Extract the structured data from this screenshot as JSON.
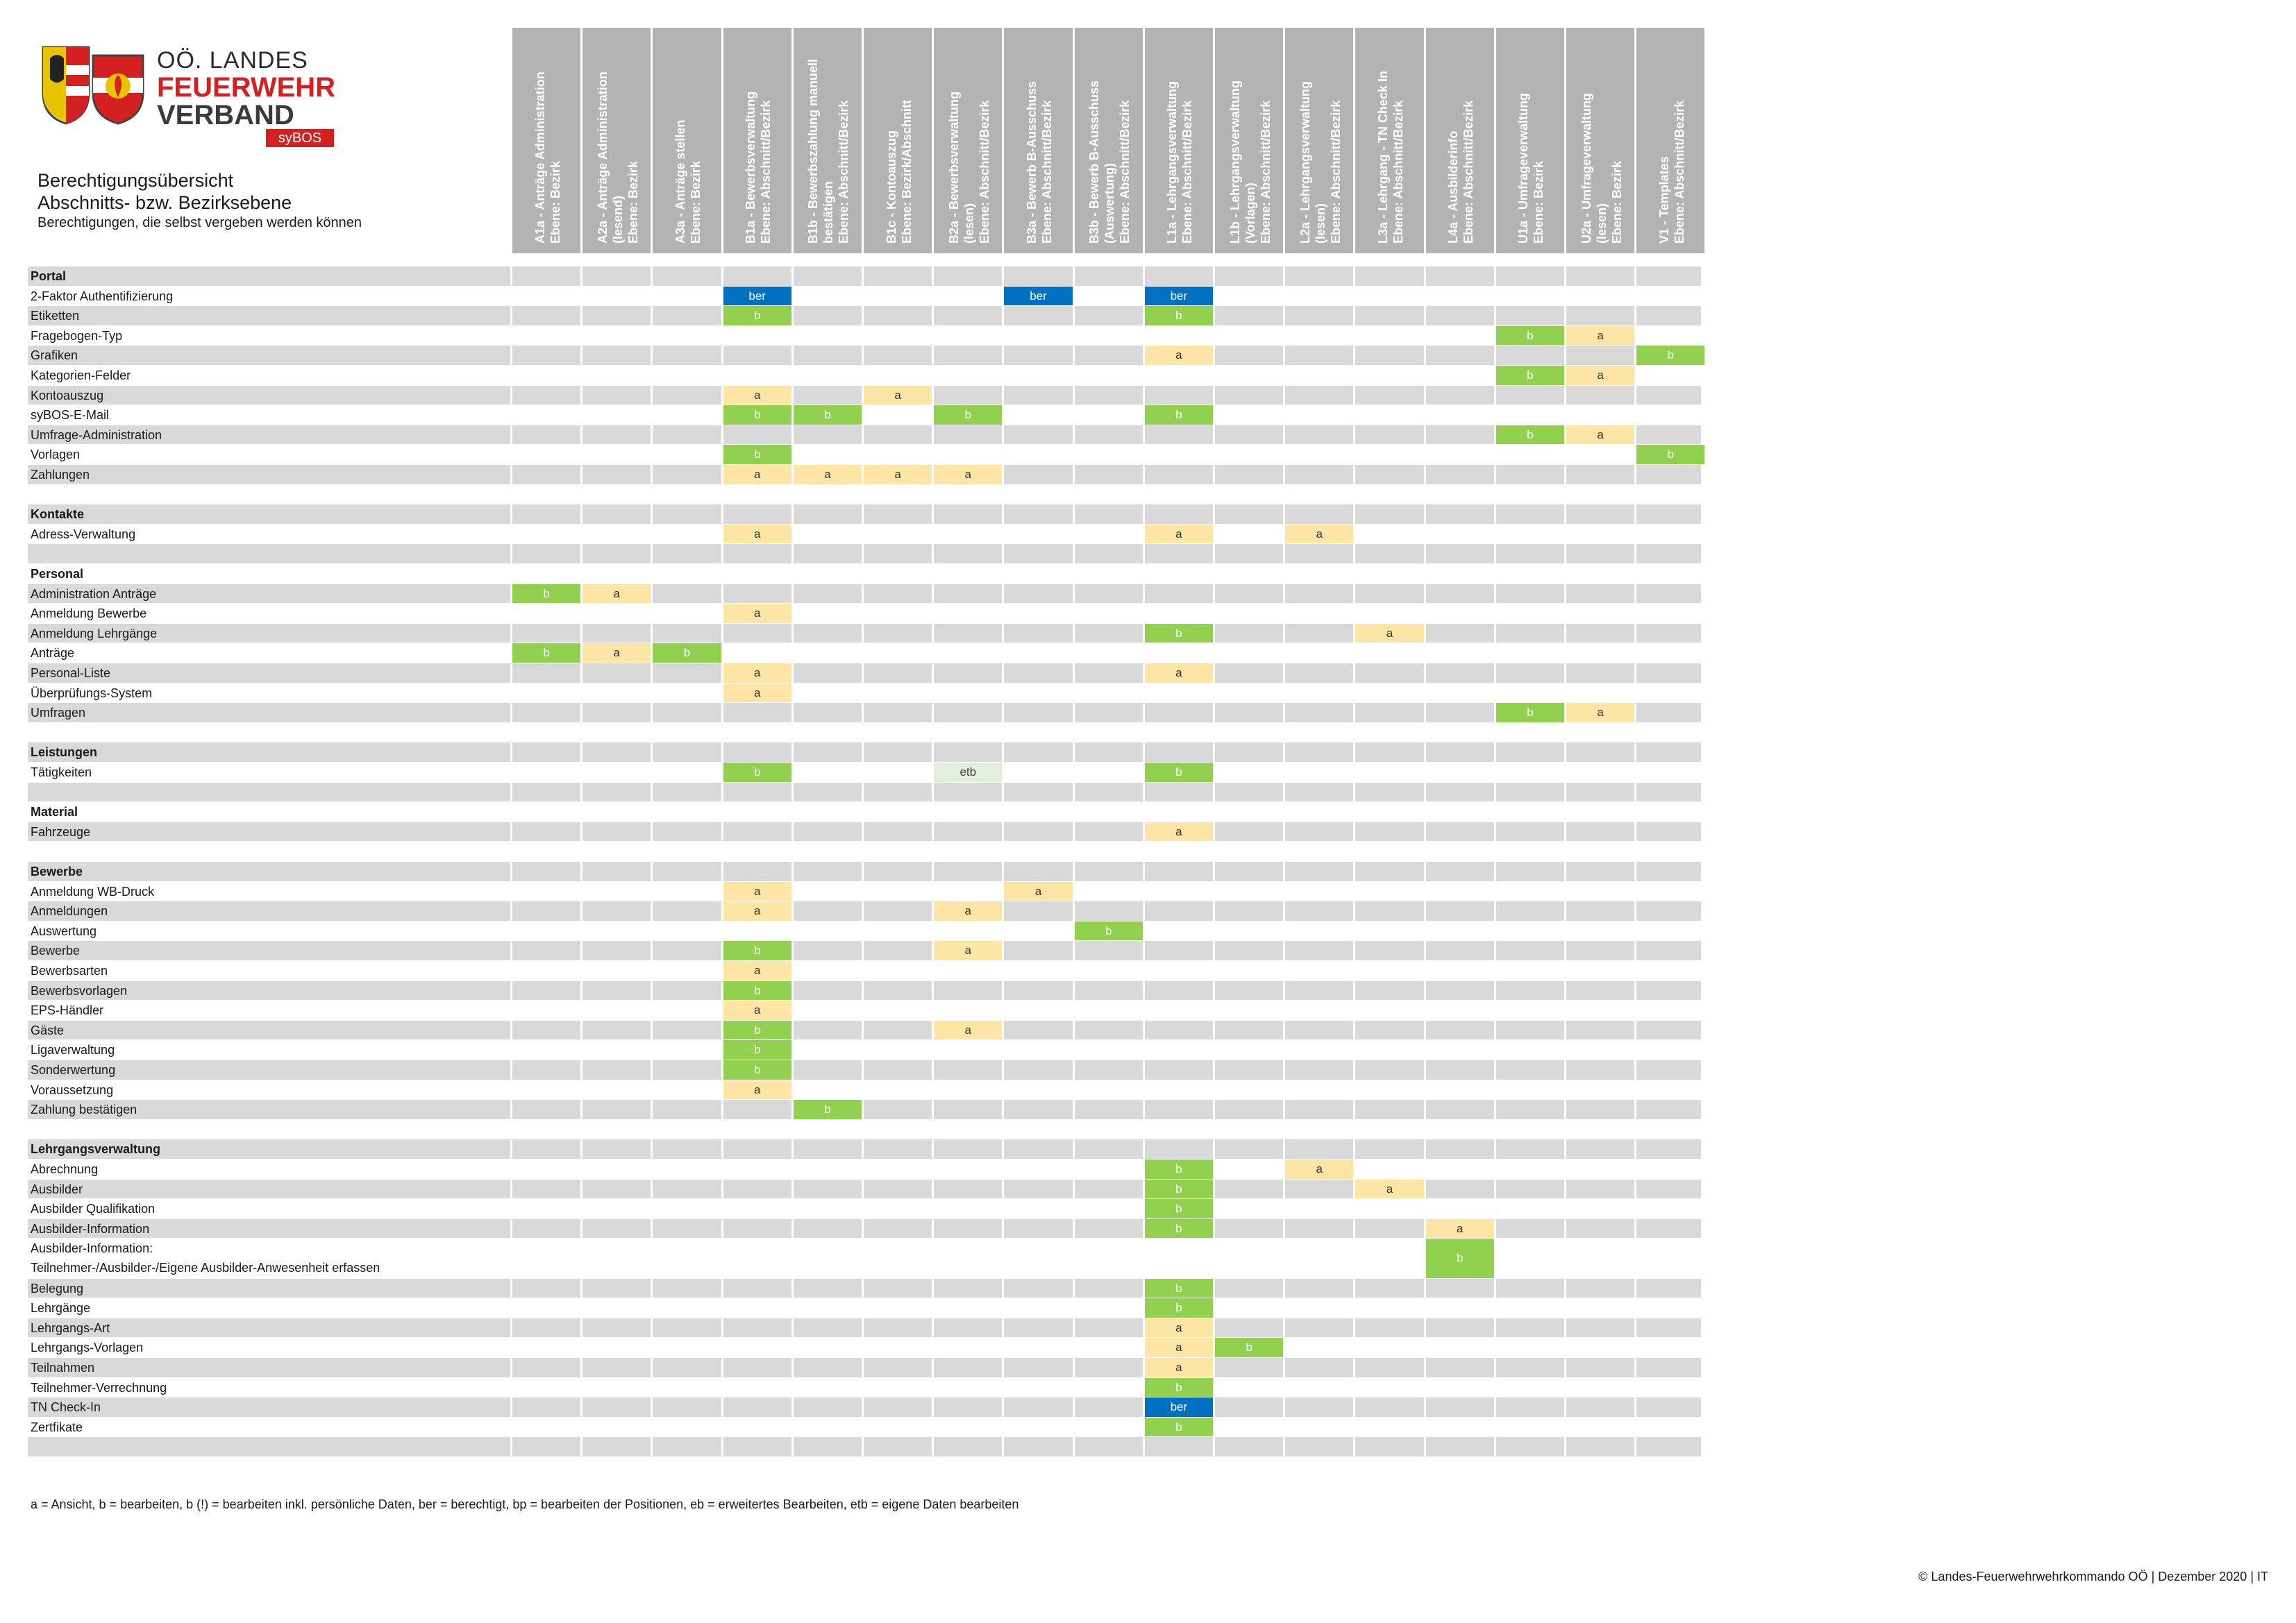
{
  "logo": {
    "line1": "OÖ. LANDES",
    "line2": "FEUERWEHR",
    "line3": "VERBAND",
    "badge": "syBOS",
    "colors": {
      "red": "#d42020",
      "dark": "#3a3a3a"
    }
  },
  "doc": {
    "title": "Berechtigungsübersicht",
    "subtitle": "Abschnitts- bzw. Bezirksebene",
    "note": "Berechtigungen, die selbst vergeben werden können"
  },
  "columns": [
    [
      "A1a - Anträge Administration",
      "Ebene: Bezirk"
    ],
    [
      "A2a - Anträge Administration",
      "(lesend)",
      "Ebene: Bezirk"
    ],
    [
      "A3a - Anträge stellen",
      "Ebene: Bezirk"
    ],
    [
      "B1a - Bewerbsverwaltung",
      "Ebene: Abschnitt/Bezirk"
    ],
    [
      "B1b - Bewerbszahlung manuell",
      "bestätigen",
      "Ebene: Abschnitt/Bezirk"
    ],
    [
      "B1c - Kontoauszug",
      "Ebene: Bezirk/Abschnitt"
    ],
    [
      "B2a - Bewerbsverwaltung",
      "(lesen)",
      "Ebene: Abschnitt/Bezirk"
    ],
    [
      "B3a - Bewerb B-Ausschuss",
      "Ebene: Abschnitt/Bezirk"
    ],
    [
      "B3b - Bewerb B-Ausschuss",
      "(Auswertung)",
      "Ebene: Abschnitt/Bezirk"
    ],
    [
      "L1a - Lehrgangsverwaltung",
      "Ebene: Abschnitt/Bezirk"
    ],
    [
      "L1b - Lehrgangsverwaltung",
      "(Vorlagen)",
      "Ebene: Abschnitt/Bezirk"
    ],
    [
      "L2a - Lehrgangsverwaltung",
      "(lesen)",
      "Ebene: Abschnitt/Bezirk"
    ],
    [
      "L3a - Lehrgang - TN Check In",
      "Ebene: Abschnitt/Bezirk"
    ],
    [
      "L4a - Ausbilderinfo",
      "Ebene: Abschnitt/Bezirk"
    ],
    [
      "U1a - Umfrageverwaltung",
      "Ebene: Bezirk"
    ],
    [
      "U2a - Umfrageverwaltung",
      "(lesen)",
      "Ebene: Bezirk"
    ],
    [
      "V1 - Templates",
      "Ebene: Abschnitt/Bezirk"
    ]
  ],
  "rows": [
    {
      "label": "Portal",
      "section": true,
      "cells": {}
    },
    {
      "label": "2-Faktor Authentifizierung",
      "cells": {
        "3": "ber",
        "7": "ber",
        "9": "ber"
      }
    },
    {
      "label": "Etiketten",
      "cells": {
        "3": "b",
        "9": "b"
      }
    },
    {
      "label": "Fragebogen-Typ",
      "cells": {
        "14": "b",
        "15": "a"
      }
    },
    {
      "label": "Grafiken",
      "cells": {
        "9": "a",
        "16": "b"
      }
    },
    {
      "label": "Kategorien-Felder",
      "cells": {
        "14": "b",
        "15": "a"
      }
    },
    {
      "label": "Kontoauszug",
      "cells": {
        "3": "a",
        "5": "a"
      }
    },
    {
      "label": "syBOS-E-Mail",
      "cells": {
        "3": "b",
        "4": "b",
        "6": "b",
        "9": "b"
      }
    },
    {
      "label": "Umfrage-Administration",
      "cells": {
        "14": "b",
        "15": "a"
      }
    },
    {
      "label": "Vorlagen",
      "cells": {
        "3": "b",
        "16": "b"
      }
    },
    {
      "label": "Zahlungen",
      "cells": {
        "3": "a",
        "4": "a",
        "5": "a",
        "6": "a"
      }
    },
    {
      "label": "",
      "cells": {}
    },
    {
      "label": "Kontakte",
      "section": true,
      "cells": {}
    },
    {
      "label": "Adress-Verwaltung",
      "cells": {
        "3": "a",
        "9": "a",
        "11": "a"
      }
    },
    {
      "label": "",
      "cells": {}
    },
    {
      "label": "Personal",
      "section": true,
      "cells": {}
    },
    {
      "label": "Administration Anträge",
      "cells": {
        "0": "b",
        "1": "a"
      }
    },
    {
      "label": "Anmeldung Bewerbe",
      "cells": {
        "3": "a"
      }
    },
    {
      "label": "Anmeldung Lehrgänge",
      "cells": {
        "9": "b",
        "12": "a"
      }
    },
    {
      "label": "Anträge",
      "cells": {
        "0": "b",
        "1": "a",
        "2": "b"
      }
    },
    {
      "label": "Personal-Liste",
      "cells": {
        "3": "a",
        "9": "a"
      }
    },
    {
      "label": "Überprüfungs-System",
      "cells": {
        "3": "a"
      }
    },
    {
      "label": "Umfragen",
      "cells": {
        "14": "b",
        "15": "a"
      }
    },
    {
      "label": "",
      "cells": {}
    },
    {
      "label": "Leistungen",
      "section": true,
      "cells": {}
    },
    {
      "label": "Tätigkeiten",
      "cells": {
        "3": "b",
        "6": "etb",
        "9": "b"
      }
    },
    {
      "label": "",
      "cells": {}
    },
    {
      "label": "Material",
      "section": true,
      "cells": {}
    },
    {
      "label": "Fahrzeuge",
      "cells": {
        "9": "a"
      }
    },
    {
      "label": "",
      "cells": {}
    },
    {
      "label": "Bewerbe",
      "section": true,
      "cells": {}
    },
    {
      "label": "Anmeldung WB-Druck",
      "cells": {
        "3": "a",
        "7": "a"
      }
    },
    {
      "label": "Anmeldungen",
      "cells": {
        "3": "a",
        "6": "a"
      }
    },
    {
      "label": "Auswertung",
      "cells": {
        "8": "b"
      }
    },
    {
      "label": "Bewerbe",
      "cells": {
        "3": "b",
        "6": "a"
      }
    },
    {
      "label": "Bewerbsarten",
      "cells": {
        "3": "a"
      }
    },
    {
      "label": "Bewerbsvorlagen",
      "cells": {
        "3": "b"
      }
    },
    {
      "label": "EPS-Händler",
      "cells": {
        "3": "a"
      }
    },
    {
      "label": "Gäste",
      "cells": {
        "3": "b",
        "6": "a"
      }
    },
    {
      "label": "Ligaverwaltung",
      "cells": {
        "3": "b"
      }
    },
    {
      "label": "Sonderwertung",
      "cells": {
        "3": "b"
      }
    },
    {
      "label": "Voraussetzung",
      "cells": {
        "3": "a"
      }
    },
    {
      "label": "Zahlung bestätigen",
      "cells": {
        "4": "b"
      }
    },
    {
      "label": "",
      "cells": {}
    },
    {
      "label": "Lehrgangsverwaltung",
      "section": true,
      "cells": {}
    },
    {
      "label": "Abrechnung",
      "cells": {
        "9": "b",
        "11": "a"
      }
    },
    {
      "label": "Ausbilder",
      "cells": {
        "9": "b",
        "12": "a"
      }
    },
    {
      "label": "Ausbilder Qualifikation",
      "cells": {
        "9": "b"
      }
    },
    {
      "label": "Ausbilder-Information",
      "cells": {
        "9": "b",
        "13": "a"
      }
    },
    {
      "label": "Ausbilder-Information:",
      "label2": "Teilnehmer-/Ausbilder-/Eigene Ausbilder-Anwesenheit erfassen",
      "double": true,
      "cells": {
        "13": "b"
      }
    },
    {
      "label": "Belegung",
      "cells": {
        "9": "b"
      }
    },
    {
      "label": "Lehrgänge",
      "cells": {
        "9": "b"
      }
    },
    {
      "label": "Lehrgangs-Art",
      "cells": {
        "9": "a"
      }
    },
    {
      "label": "Lehrgangs-Vorlagen",
      "cells": {
        "9": "a",
        "10": "b"
      }
    },
    {
      "label": "Teilnahmen",
      "cells": {
        "9": "a"
      }
    },
    {
      "label": "Teilnehmer-Verrechnung",
      "cells": {
        "9": "b"
      }
    },
    {
      "label": "TN Check-In",
      "cells": {
        "9": "ber"
      }
    },
    {
      "label": "Zertfikate",
      "cells": {
        "9": "b"
      }
    },
    {
      "label": "",
      "cells": {}
    }
  ],
  "legend": "a = Ansicht, b = bearbeiten, b (!) = bearbeiten inkl. persönliche Daten, ber = berechtigt, bp = bearbeiten der Positionen, eb = erweitertes Bearbeiten, etb = eigene Daten bearbeiten",
  "footer": "© Landes-Feuerwehrwehrkommando OÖ | Dezember 2020 | IT"
}
